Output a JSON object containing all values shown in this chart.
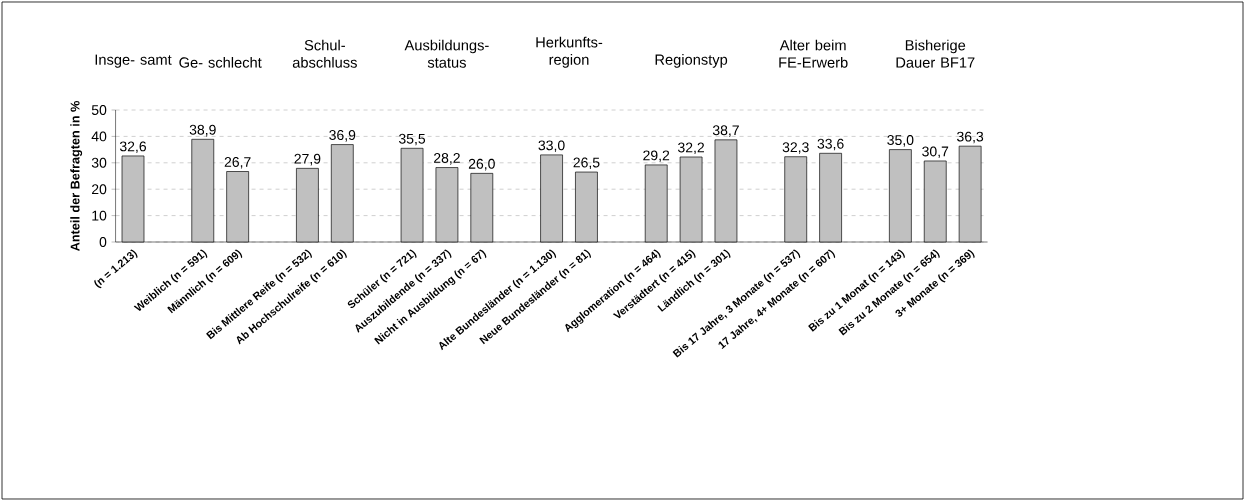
{
  "chart_data": {
    "type": "bar",
    "ylabel": "Anteil der Befragten in %",
    "categories": [
      "(n = 1.213)",
      null,
      "Weiblich (n = 591)",
      "Männlich (n = 609)",
      null,
      "Bis Mittlere Reife (n = 532)",
      "Ab Hochschulreife (n = 610)",
      null,
      "Schüler (n = 721)",
      "Auszubildende (n = 337)",
      "Nicht in Ausbildung (n = 67)",
      null,
      "Alte Bundesländer (n = 1.130)",
      "Neue Bundesländer (n = 81)",
      null,
      "Agglomeration (n = 464)",
      "Verstädtert (n = 415)",
      "Ländlich (n = 301)",
      null,
      "Bis 17 Jahre, 3 Monate (n = 537)",
      "17 Jahre, 4+ Monate (n = 607)",
      null,
      "Bis zu 1 Monat (n = 143)",
      "Bis zu 2 Monate (n = 654)",
      "3+ Monate (n = 369)"
    ],
    "values": [
      32.6,
      null,
      38.9,
      26.7,
      null,
      27.9,
      36.9,
      null,
      35.5,
      28.2,
      26.0,
      null,
      33.0,
      26.5,
      null,
      29.2,
      32.2,
      38.7,
      null,
      32.3,
      33.6,
      null,
      35.0,
      30.7,
      36.3
    ],
    "value_labels": [
      "32,6",
      null,
      "38,9",
      "26,7",
      null,
      "27,9",
      "36,9",
      null,
      "35,5",
      "28,2",
      "26,0",
      null,
      "33,0",
      "26,5",
      null,
      "29,2",
      "32,2",
      "38,7",
      null,
      "32,3",
      "33,6",
      null,
      "35,0",
      "30,7",
      "36,3"
    ],
    "color": "#c0c0c0",
    "annotations": [
      "Insge- samt",
      "Ge- schlecht",
      "Schul- abschluss",
      "Ausbildungs- status",
      "Herkunfts- region",
      "Regionstyp",
      "Alter beim FE-Erwerb",
      "Bisherige Dauer BF17"
    ],
    "ylim": [
      0,
      50
    ],
    "yticks": [
      0,
      10,
      20,
      30,
      40,
      50
    ],
    "grid": "y"
  }
}
